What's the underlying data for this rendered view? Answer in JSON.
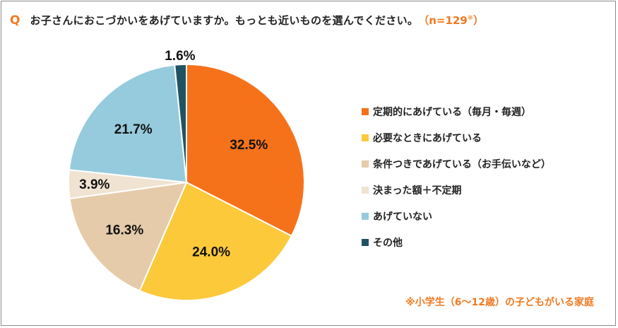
{
  "question": {
    "mark": "Q",
    "text": "お子さんにおこづかいをあげていますか。もっとも近いものを選んでください。",
    "n_label": "（n=129",
    "n_mark": "※",
    "n_close": "）"
  },
  "footnote": "※小学生（6〜12歳）の子どもがいる家庭",
  "chart_data": {
    "type": "pie",
    "start_angle_deg": 0,
    "direction": "clockwise",
    "slices": [
      {
        "label": "定期的にあげている（毎月・毎週）",
        "value": 32.5,
        "value_label": "32.5%",
        "color": "#f5721b"
      },
      {
        "label": "必要なときにあげている",
        "value": 24.0,
        "value_label": "24.0%",
        "color": "#fcc93b"
      },
      {
        "label": "条件つきであげている（お手伝いなど）",
        "value": 16.3,
        "value_label": "16.3%",
        "color": "#e5cba9"
      },
      {
        "label": "決まった額＋不定期",
        "value": 3.9,
        "value_label": "3.9%",
        "color": "#f0e3d1"
      },
      {
        "label": "あげていない",
        "value": 21.7,
        "value_label": "21.7%",
        "color": "#96cbdd"
      },
      {
        "label": "その他",
        "value": 1.6,
        "value_label": "1.6%",
        "color": "#1f5364"
      }
    ]
  }
}
